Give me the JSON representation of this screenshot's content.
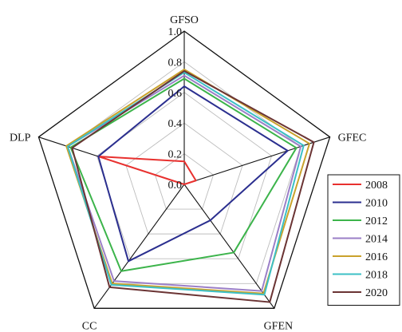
{
  "chart_data": {
    "type": "radar",
    "title": "",
    "axes": [
      "GFSO",
      "GFEC",
      "GFEN",
      "CC",
      "DLP"
    ],
    "r_range": [
      0,
      1.0
    ],
    "ticks": [
      "0.0",
      "0.2",
      "0.4",
      "0.6",
      "0.8",
      "1.0"
    ],
    "tick_values": [
      0,
      0.2,
      0.4,
      0.6,
      0.8,
      1.0
    ],
    "grid": true,
    "legend_position": "right",
    "series": [
      {
        "name": "2008",
        "color": "#e8312f",
        "values": [
          0.15,
          0.08,
          0.0,
          0.0,
          0.59
        ]
      },
      {
        "name": "2010",
        "color": "#2b2f8f",
        "values": [
          0.64,
          0.71,
          0.29,
          0.62,
          0.59
        ]
      },
      {
        "name": "2012",
        "color": "#3cb44b",
        "values": [
          0.69,
          0.77,
          0.55,
          0.7,
          0.78
        ]
      },
      {
        "name": "2014",
        "color": "#9b7fc7",
        "values": [
          0.71,
          0.8,
          0.86,
          0.78,
          0.8
        ]
      },
      {
        "name": "2016",
        "color": "#c9a22c",
        "values": [
          0.75,
          0.86,
          0.88,
          0.8,
          0.81
        ]
      },
      {
        "name": "2018",
        "color": "#3cc0c6",
        "values": [
          0.73,
          0.82,
          0.89,
          0.81,
          0.8
        ]
      },
      {
        "name": "2020",
        "color": "#6b3434",
        "values": [
          0.74,
          0.89,
          0.95,
          0.83,
          0.77
        ]
      }
    ]
  }
}
